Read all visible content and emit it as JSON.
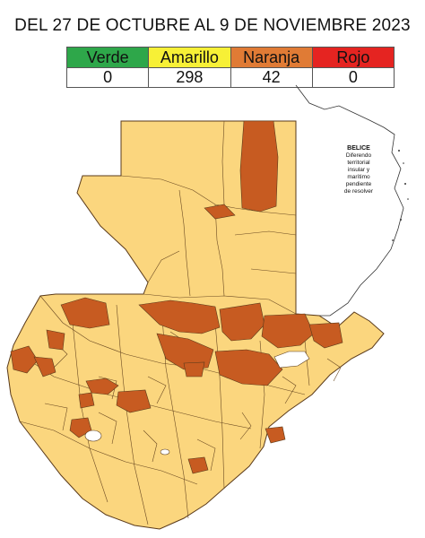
{
  "title": "DEL 27 DE OCTUBRE AL 9 DE NOVIEMBRE 2023",
  "legend": [
    {
      "label": "Verde",
      "count": "0",
      "color": "#2ea74a"
    },
    {
      "label": "Amarillo",
      "count": "298",
      "color": "#f7f036"
    },
    {
      "label": "Naranja",
      "count": "42",
      "color": "#e07b35"
    },
    {
      "label": "Rojo",
      "count": "0",
      "color": "#e52421"
    }
  ],
  "map": {
    "fill_amarillo": "#fbd67e",
    "fill_naranja": "#c75b21",
    "border_color": "#5a3a1a",
    "belize_note": {
      "name": "BELICE",
      "lines": [
        "Diferendo",
        "territorial",
        "insular y",
        "marítimo",
        "pendiente",
        "de resolver"
      ]
    }
  }
}
